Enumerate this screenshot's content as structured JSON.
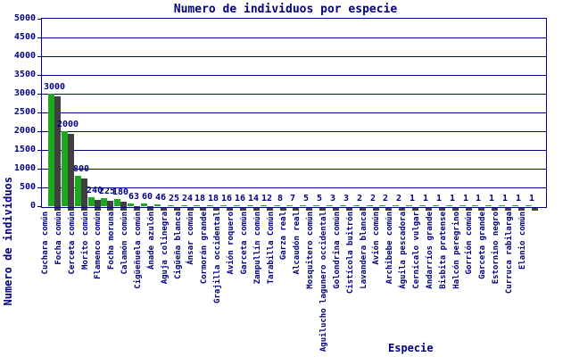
{
  "title": "Numero de individuos por especie",
  "colors": {
    "bar": "#1EA81E",
    "bar_shadow": "#404040",
    "axis_text": "#000080",
    "grid": "#000080",
    "background": "#FFFFFF"
  },
  "chart_data": {
    "type": "bar",
    "title": "Numero de individuos por especie",
    "xlabel": "Especie",
    "ylabel": "Numero de individuos",
    "ylim": [
      0,
      5000
    ],
    "y_ticks": [
      0,
      500,
      1000,
      1500,
      2000,
      2500,
      3000,
      3500,
      4000,
      4500,
      5000
    ],
    "grid": true,
    "legend": "none",
    "bar_value_labels_shown": true,
    "categories": [
      "Cuchara común",
      "Focha común",
      "Cerceta común",
      "Morito común",
      "Flamenco común",
      "Focha moruna",
      "Calamón común",
      "Cigüeñuela común",
      "Ánade azulón",
      "Aguja colinegra",
      "Cigüeña blanca",
      "Ánsar común",
      "Cormorán grande",
      "Grajilla occidental",
      "Avión roquero",
      "Garceta común",
      "Zampullín común",
      "Tarabilla Común",
      "Garza real",
      "Alcaudón real",
      "Mosquitero común",
      "Aguilucho lagunero occidental",
      "Golondrina común",
      "Cistícola buitrón",
      "Lavandera blanca",
      "Avión común",
      "Archibebe común",
      "Águila pescadora",
      "Cernícalo vulgar",
      "Andarríos grande",
      "Bisbita pratense",
      "Halcón peregrino",
      "Gorrión común",
      "Garceta grande",
      "Estornino negro",
      "Curruca rabilarga",
      "Elanio común"
    ],
    "values": [
      3000,
      2000,
      800,
      240,
      225,
      180,
      63,
      60,
      46,
      25,
      24,
      18,
      18,
      16,
      16,
      14,
      12,
      8,
      7,
      5,
      5,
      3,
      3,
      2,
      2,
      2,
      2,
      1,
      1,
      1,
      1,
      1,
      1,
      1,
      1,
      1,
      1
    ]
  }
}
